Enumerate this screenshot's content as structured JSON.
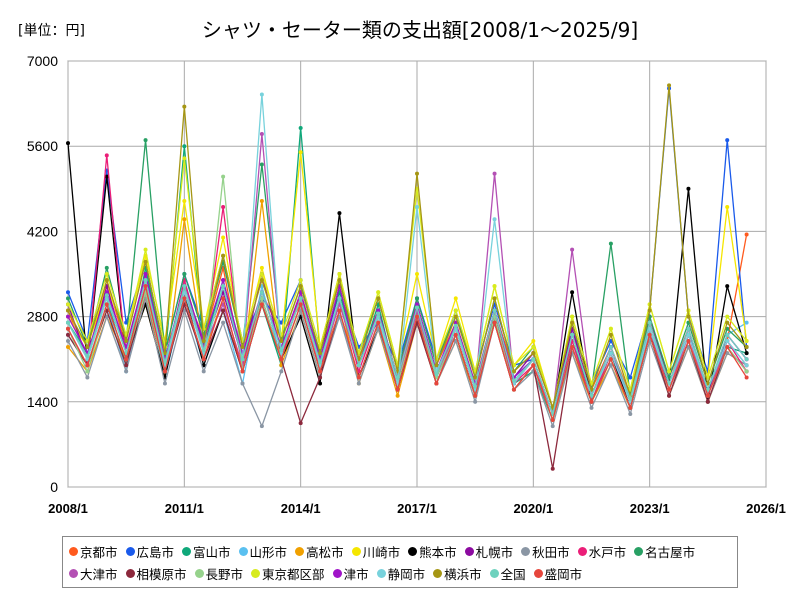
{
  "chart_data": {
    "type": "line",
    "title": "シャツ・セーター類の支出額[2008/1～2025/9]",
    "unit_label": "[単位：円]",
    "ylim": [
      0,
      7000
    ],
    "yticks": [
      "0",
      "1400",
      "2800",
      "4200",
      "5600",
      "7000"
    ],
    "xlim": [
      "2008/1",
      "2026/1"
    ],
    "xticks": [
      "2008/1",
      "2011/1",
      "2014/1",
      "2017/1",
      "2020/1",
      "2023/1",
      "2026/1"
    ],
    "grid": true,
    "legend_position": "bottom",
    "sampling_note": "半年ごと",
    "x": [
      "2008/1",
      "2008/7",
      "2009/1",
      "2009/7",
      "2010/1",
      "2010/7",
      "2011/1",
      "2011/7",
      "2012/1",
      "2012/7",
      "2013/1",
      "2013/7",
      "2014/1",
      "2014/7",
      "2015/1",
      "2015/7",
      "2016/1",
      "2016/7",
      "2017/1",
      "2017/7",
      "2018/1",
      "2018/7",
      "2019/1",
      "2019/7",
      "2020/1",
      "2020/7",
      "2021/1",
      "2021/7",
      "2022/1",
      "2022/7",
      "2023/1",
      "2023/7",
      "2024/1",
      "2024/7",
      "2025/1",
      "2025/7"
    ],
    "series": [
      {
        "name": "京都市",
        "color": "#ff5a1e",
        "values": [
          2900,
          2100,
          3400,
          2300,
          3100,
          1900,
          3300,
          2400,
          3600,
          2000,
          3200,
          2500,
          3000,
          2200,
          3500,
          2100,
          2900,
          1800,
          3100,
          2000,
          2700,
          1700,
          2900,
          1900,
          2200,
          1300,
          2500,
          1600,
          2300,
          1500,
          2700,
          1800,
          2600,
          1600,
          2400,
          4150
        ]
      },
      {
        "name": "広島市",
        "color": "#1a5aeb",
        "values": [
          3200,
          2400,
          5200,
          2700,
          3700,
          2200,
          3500,
          2600,
          3800,
          2400,
          3100,
          2700,
          3400,
          2100,
          3200,
          2300,
          2700,
          2000,
          3100,
          2100,
          2800,
          1900,
          3000,
          2000,
          2100,
          1200,
          2600,
          1700,
          2400,
          1800,
          2900,
          6550,
          2800,
          1900,
          5700,
          2300
        ]
      },
      {
        "name": "富山市",
        "color": "#0fa87a",
        "values": [
          2700,
          2200,
          3100,
          2000,
          3600,
          2100,
          5600,
          2300,
          3400,
          2100,
          3000,
          2000,
          5900,
          2200,
          3200,
          2000,
          3000,
          1700,
          2900,
          1800,
          2600,
          1600,
          2800,
          1700,
          1900,
          1100,
          2400,
          1500,
          2200,
          1400,
          2600,
          1700,
          2500,
          1600,
          2300,
          2200
        ]
      },
      {
        "name": "山形市",
        "color": "#5ac0f0",
        "values": [
          2500,
          2000,
          3000,
          1900,
          3300,
          1800,
          3100,
          2000,
          2900,
          1700,
          3300,
          2100,
          3000,
          1900,
          2800,
          1800,
          2700,
          1600,
          2800,
          1900,
          2500,
          1500,
          2900,
          1800,
          2100,
          1200,
          2300,
          1400,
          2100,
          1300,
          2500,
          1600,
          2400,
          1500,
          2500,
          2700
        ]
      },
      {
        "name": "高松市",
        "color": "#f0a000",
        "values": [
          2300,
          1900,
          2800,
          2100,
          3000,
          1800,
          4400,
          2200,
          3100,
          1900,
          4700,
          2000,
          2900,
          1800,
          3100,
          1700,
          2600,
          1500,
          2700,
          1700,
          2400,
          1500,
          2800,
          1600,
          2000,
          1100,
          2200,
          1400,
          2000,
          1300,
          2500,
          1500,
          2300,
          1400,
          2200,
          2000
        ]
      },
      {
        "name": "川崎市",
        "color": "#f5e600",
        "values": [
          2800,
          2300,
          3300,
          2500,
          3800,
          2400,
          4700,
          2600,
          4100,
          2300,
          3600,
          2400,
          5500,
          2300,
          3500,
          2200,
          3200,
          2000,
          3500,
          2100,
          3100,
          1900,
          3300,
          2000,
          2400,
          1300,
          2800,
          1700,
          2600,
          1600,
          3000,
          1900,
          2900,
          1800,
          4600,
          2400
        ]
      },
      {
        "name": "熊本市",
        "color": "#000000",
        "values": [
          5650,
          2000,
          5100,
          2100,
          3000,
          1800,
          3200,
          2000,
          2900,
          1900,
          3000,
          2100,
          2800,
          1700,
          4500,
          1800,
          2600,
          1700,
          2700,
          1800,
          2500,
          1500,
          2800,
          1700,
          2100,
          1200,
          3200,
          1400,
          2200,
          1300,
          2500,
          1700,
          4900,
          1400,
          3300,
          2200
        ]
      },
      {
        "name": "札幌市",
        "color": "#8c0aa0",
        "values": [
          3000,
          2100,
          3300,
          2200,
          3500,
          2000,
          3400,
          2300,
          3200,
          2100,
          3500,
          2200,
          3100,
          2000,
          3300,
          2000,
          2800,
          1800,
          3000,
          1900,
          2600,
          1600,
          2900,
          1800,
          2200,
          1300,
          2600,
          1500,
          2300,
          1400,
          2800,
          1700,
          2600,
          1500,
          2500,
          2100
        ]
      },
      {
        "name": "秋田市",
        "color": "#8a96a4",
        "values": [
          2400,
          1800,
          2800,
          1900,
          3100,
          1700,
          2900,
          1900,
          2700,
          1700,
          1000,
          1900,
          2900,
          1800,
          2800,
          1700,
          2600,
          1600,
          2700,
          1700,
          2400,
          1400,
          2700,
          1600,
          1900,
          1000,
          2200,
          1300,
          2000,
          1200,
          2400,
          1500,
          2300,
          1400,
          2200,
          2000
        ]
      },
      {
        "name": "水戸市",
        "color": "#eb1e78",
        "values": [
          2600,
          2000,
          5450,
          2100,
          3300,
          1900,
          3400,
          2200,
          4600,
          2000,
          3100,
          2100,
          3200,
          1900,
          3100,
          1900,
          2800,
          1700,
          2900,
          1800,
          2600,
          1600,
          2800,
          1700,
          2000,
          1200,
          2400,
          1400,
          2200,
          1400,
          2600,
          1600,
          2500,
          1500,
          2400,
          1900
        ]
      },
      {
        "name": "名古屋市",
        "color": "#28a064",
        "values": [
          3100,
          2300,
          3600,
          2400,
          5700,
          2200,
          3500,
          2500,
          3700,
          2300,
          5300,
          2400,
          3300,
          2200,
          3400,
          2200,
          3100,
          1900,
          3100,
          2000,
          2900,
          1800,
          3100,
          1900,
          2300,
          1300,
          2700,
          1600,
          4000,
          1500,
          2800,
          1800,
          2700,
          1700,
          2600,
          2300
        ]
      },
      {
        "name": "大津市",
        "color": "#b450b4",
        "values": [
          2700,
          2100,
          3100,
          2200,
          3400,
          2000,
          3200,
          2300,
          3000,
          2000,
          5800,
          2200,
          3100,
          2000,
          3000,
          2000,
          2800,
          1700,
          2900,
          1800,
          2600,
          1600,
          5150,
          1700,
          2100,
          1200,
          3900,
          1500,
          2300,
          1400,
          2600,
          1600,
          2500,
          1500,
          2400,
          2000
        ]
      },
      {
        "name": "相模原市",
        "color": "#8c283c",
        "values": [
          2500,
          2000,
          2900,
          2000,
          3200,
          1900,
          3000,
          2100,
          2900,
          1900,
          3100,
          2100,
          1050,
          1800,
          2900,
          1800,
          2700,
          1600,
          2700,
          1700,
          2500,
          1500,
          2700,
          1600,
          2000,
          300,
          2300,
          1400,
          2100,
          1300,
          2500,
          1500,
          2400,
          1400,
          2300,
          1900
        ]
      },
      {
        "name": "長野市",
        "color": "#96d28c",
        "values": [
          2600,
          1900,
          3000,
          2100,
          3200,
          1900,
          3100,
          2100,
          5100,
          1900,
          3100,
          2100,
          3000,
          1900,
          2900,
          1800,
          2700,
          1700,
          2800,
          1800,
          2500,
          1500,
          2800,
          1600,
          2000,
          1100,
          2300,
          1400,
          2100,
          1300,
          2500,
          1600,
          2400,
          1500,
          2300,
          1900
        ]
      },
      {
        "name": "東京都区部",
        "color": "#d7eb1e",
        "values": [
          3000,
          2400,
          3500,
          2500,
          3900,
          2300,
          5400,
          2600,
          3800,
          2400,
          3500,
          2500,
          3400,
          2300,
          3500,
          2200,
          3200,
          2000,
          4900,
          2100,
          2900,
          1900,
          3300,
          2000,
          2300,
          1300,
          2800,
          1700,
          2600,
          1600,
          3000,
          1900,
          2900,
          1800,
          2800,
          2400
        ]
      },
      {
        "name": "津市",
        "color": "#a014c8",
        "values": [
          2800,
          2200,
          3200,
          2300,
          3500,
          2100,
          3300,
          2400,
          3400,
          2200,
          3200,
          2300,
          3200,
          2100,
          3300,
          2000,
          2900,
          1800,
          3000,
          1900,
          2700,
          1700,
          2900,
          1800,
          2100,
          1200,
          2500,
          1500,
          2300,
          1400,
          2700,
          1700,
          2600,
          1600,
          2500,
          2100
        ]
      },
      {
        "name": "静岡市",
        "color": "#78d2dc",
        "values": [
          2700,
          2100,
          3100,
          2200,
          3400,
          2000,
          3200,
          2200,
          3300,
          2100,
          6450,
          2200,
          3100,
          2000,
          3100,
          2000,
          2800,
          1700,
          4600,
          1900,
          2600,
          1600,
          4400,
          1700,
          2100,
          1200,
          2500,
          1500,
          2200,
          1400,
          2600,
          1700,
          2500,
          1600,
          2400,
          2000
        ]
      },
      {
        "name": "横浜市",
        "color": "#a59614",
        "values": [
          2900,
          2300,
          3400,
          2400,
          3700,
          2200,
          6250,
          2400,
          3800,
          2300,
          3400,
          2400,
          3300,
          2200,
          3400,
          2100,
          3100,
          1900,
          5150,
          2000,
          2800,
          1800,
          3100,
          1900,
          2200,
          1300,
          2700,
          1600,
          2500,
          1500,
          2900,
          6600,
          2800,
          1700,
          2700,
          2300
        ]
      },
      {
        "name": "全国",
        "color": "#6ed2be",
        "values": [
          2700,
          2150,
          3150,
          2200,
          3400,
          2050,
          3300,
          2250,
          3300,
          2100,
          3200,
          2250,
          3100,
          2050,
          3100,
          2000,
          2850,
          1800,
          2950,
          1850,
          2650,
          1650,
          2900,
          1750,
          2100,
          1200,
          2500,
          1500,
          2300,
          1450,
          2700,
          1700,
          2600,
          1600,
          2500,
          2100
        ]
      },
      {
        "name": "盛岡市",
        "color": "#e6463c",
        "values": [
          2600,
          2000,
          3000,
          2100,
          3300,
          1900,
          3100,
          2100,
          3100,
          1900,
          3000,
          2100,
          3000,
          1900,
          2900,
          1800,
          2700,
          1600,
          2800,
          1700,
          2500,
          1500,
          2700,
          1600,
          2000,
          1100,
          2300,
          1400,
          2100,
          1300,
          2500,
          1600,
          2400,
          1500,
          2300,
          1800
        ]
      }
    ]
  }
}
